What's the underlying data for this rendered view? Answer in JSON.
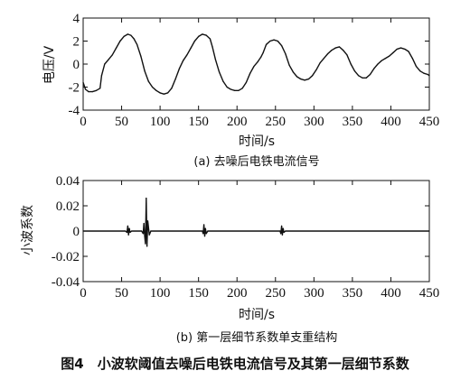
{
  "figure_caption": "图4　小波软阈值去噪后电铁电流信号及其第一层细节系数",
  "chart_data": [
    {
      "type": "line",
      "caption": "(a) 去噪后电铁电流信号",
      "xlabel": "时间/s",
      "ylabel": "电压/V",
      "xlim": [
        0,
        450
      ],
      "ylim": [
        -4,
        4
      ],
      "xticks": [
        "0",
        "50",
        "100",
        "150",
        "200",
        "250",
        "300",
        "350",
        "400",
        "450"
      ],
      "yticks": [
        "4",
        "2",
        "0",
        "-2",
        "-4"
      ],
      "grid": false,
      "series": [
        {
          "x": [
            0,
            3,
            7,
            12,
            17,
            22,
            24,
            28,
            33,
            38,
            43,
            48,
            53,
            58,
            62,
            66,
            70,
            75,
            80,
            85,
            90,
            95,
            100,
            105,
            110,
            115,
            120,
            125,
            130,
            135,
            140,
            145,
            150,
            155,
            160,
            165,
            168,
            172,
            177,
            182,
            187,
            192,
            197,
            202,
            207,
            212,
            217,
            222,
            227,
            231,
            234,
            238,
            243,
            248,
            253,
            258,
            263,
            268,
            273,
            278,
            283,
            288,
            293,
            298,
            303,
            308,
            313,
            318,
            323,
            328,
            333,
            338,
            343,
            348,
            353,
            358,
            363,
            368,
            373,
            378,
            383,
            388,
            393,
            398,
            403,
            408,
            413,
            418,
            423,
            428,
            433,
            438,
            443,
            448,
            450
          ],
          "y": [
            -1.6,
            -2.2,
            -2.4,
            -2.4,
            -2.3,
            -2.1,
            -1.0,
            0.0,
            0.4,
            0.8,
            1.4,
            2.0,
            2.4,
            2.6,
            2.5,
            2.2,
            1.7,
            0.7,
            -0.6,
            -1.5,
            -2.0,
            -2.3,
            -2.5,
            -2.6,
            -2.5,
            -2.1,
            -1.3,
            -0.4,
            0.3,
            0.8,
            1.4,
            2.0,
            2.4,
            2.6,
            2.5,
            2.2,
            1.5,
            0.4,
            -0.7,
            -1.5,
            -2.0,
            -2.2,
            -2.3,
            -2.3,
            -2.1,
            -1.6,
            -0.8,
            -0.2,
            0.2,
            0.6,
            1.0,
            1.7,
            2.0,
            2.1,
            2.0,
            1.6,
            0.9,
            -0.1,
            -0.7,
            -1.1,
            -1.3,
            -1.4,
            -1.3,
            -1.0,
            -0.5,
            0.1,
            0.5,
            0.9,
            1.2,
            1.4,
            1.5,
            1.2,
            0.8,
            0.0,
            -0.6,
            -1.0,
            -1.2,
            -1.2,
            -0.9,
            -0.4,
            0.0,
            0.3,
            0.5,
            0.7,
            1.0,
            1.3,
            1.4,
            1.3,
            1.1,
            0.5,
            -0.2,
            -0.6,
            -0.8,
            -0.9,
            -1.0
          ]
        }
      ]
    },
    {
      "type": "line",
      "caption": "(b) 第一层细节系数单支重结构",
      "xlabel": "时间/s",
      "ylabel": "小波系数",
      "xlim": [
        0,
        450
      ],
      "ylim": [
        -0.04,
        0.04
      ],
      "xticks": [
        "0",
        "50",
        "100",
        "150",
        "200",
        "250",
        "300",
        "350",
        "400",
        "450"
      ],
      "yticks": [
        "0.04",
        "0.02",
        "0",
        "-0.02",
        "-0.04"
      ],
      "grid": false,
      "series": [
        {
          "x": [
            0,
            55,
            57,
            58,
            59,
            60,
            61,
            63,
            76,
            78,
            79,
            80,
            81,
            82,
            83,
            84,
            86,
            88,
            155,
            156,
            157,
            158,
            159,
            160,
            162,
            256,
            257,
            258,
            259,
            260,
            261,
            263,
            450
          ],
          "y": [
            0,
            0,
            -0.001,
            0.004,
            -0.003,
            0.002,
            -0.001,
            0,
            0,
            -0.002,
            0.006,
            -0.004,
            -0.01,
            0.026,
            -0.012,
            0.008,
            -0.003,
            0,
            0,
            -0.002,
            0.005,
            -0.004,
            0.002,
            -0.002,
            0,
            0,
            -0.002,
            0.004,
            -0.003,
            0.002,
            -0.001,
            0,
            0
          ]
        }
      ]
    }
  ]
}
